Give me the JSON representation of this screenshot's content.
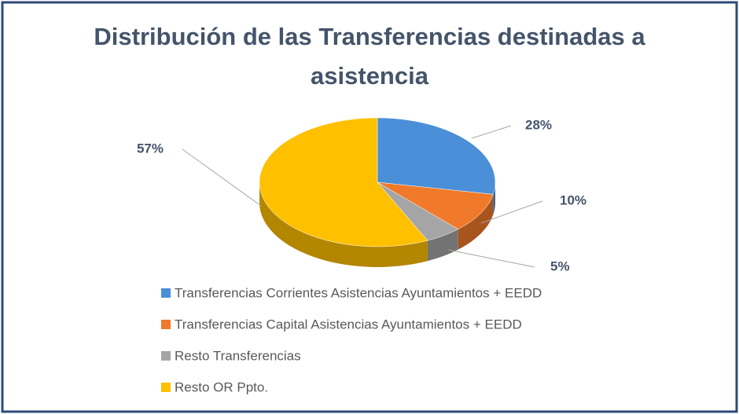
{
  "chart_data": {
    "type": "pie",
    "title": "Distribución de las Transferencias destinadas a asistencia",
    "categories": [
      "Transferencias Corrientes Asistencias Ayuntamientos + EEDD",
      "Transferencias Capital Asistencias Ayuntamientos + EEDD",
      "Resto Transferencias",
      "Resto OR Ppto."
    ],
    "values": [
      28,
      10,
      5,
      57
    ],
    "value_labels": [
      "28%",
      "10%",
      "5%",
      "57%"
    ],
    "colors": [
      "#4a8fd8",
      "#f07a2a",
      "#a5a5a5",
      "#ffc000"
    ]
  }
}
